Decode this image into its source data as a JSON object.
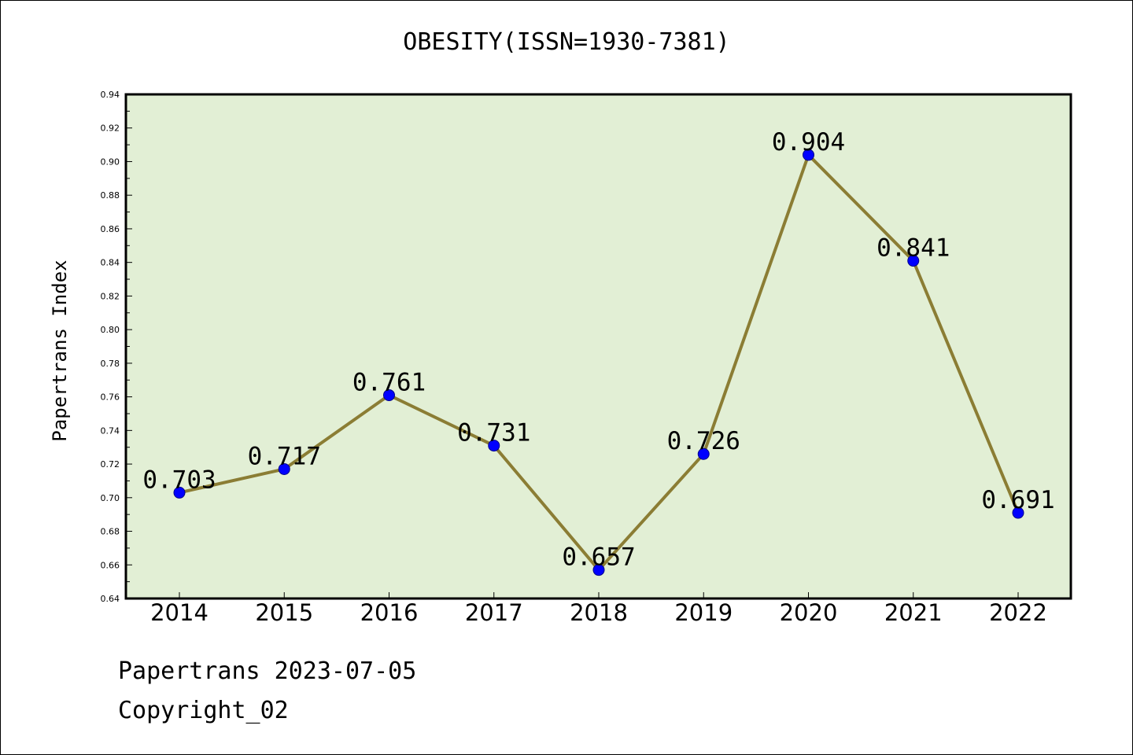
{
  "chart_data": {
    "type": "line",
    "title": "OBESITY(ISSN=1930-7381)",
    "xlabel": "",
    "ylabel": "Papertrans Index",
    "categories": [
      "2014",
      "2015",
      "2016",
      "2017",
      "2018",
      "2019",
      "2020",
      "2021",
      "2022"
    ],
    "series": [
      {
        "values": [
          0.703,
          0.717,
          0.761,
          0.731,
          0.657,
          0.726,
          0.904,
          0.841,
          0.691
        ],
        "labels": [
          "0.703",
          "0.717",
          "0.761",
          "0.731",
          "0.657",
          "0.726",
          "0.904",
          "0.841",
          "0.691"
        ],
        "line_color": "#8b7d34",
        "marker_color": "#0000ff"
      }
    ],
    "ylim": [
      0.64,
      0.94
    ],
    "yticks": [
      "0.64",
      "0.66",
      "0.68",
      "0.70",
      "0.72",
      "0.74",
      "0.76",
      "0.78",
      "0.80",
      "0.82",
      "0.84",
      "0.86",
      "0.88",
      "0.90",
      "0.92",
      "0.94"
    ],
    "plot_background": "#e2efd5",
    "grid": false,
    "legend": "none"
  },
  "footer": {
    "line1": "Papertrans 2023-07-05",
    "line2": "Copyright_02"
  }
}
